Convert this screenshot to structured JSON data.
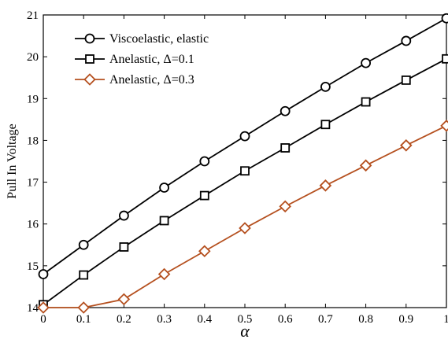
{
  "chart_data": {
    "type": "line",
    "xlabel": "α",
    "ylabel": "Pull In Voltage",
    "xlim": [
      0,
      1
    ],
    "ylim": [
      14,
      21
    ],
    "x": [
      0,
      0.1,
      0.2,
      0.3,
      0.4,
      0.5,
      0.6,
      0.7,
      0.8,
      0.9,
      1
    ],
    "xticks": [
      "0",
      "0.1",
      "0.2",
      "0.3",
      "0.4",
      "0.5",
      "0.6",
      "0.7",
      "0.8",
      "0.9",
      "1"
    ],
    "yticks": [
      "14",
      "15",
      "16",
      "17",
      "18",
      "19",
      "20",
      "21"
    ],
    "grid": false,
    "legend_position": "top-left",
    "series": [
      {
        "name": "Viscoelastic, elastic",
        "values": [
          14.8,
          15.5,
          16.2,
          16.87,
          17.5,
          18.1,
          18.7,
          19.28,
          19.85,
          20.38,
          20.92
        ],
        "color": "#000000",
        "marker": "circle"
      },
      {
        "name": "Anelastic, Δ=0.1",
        "values": [
          14.07,
          14.78,
          15.45,
          16.08,
          16.68,
          17.27,
          17.82,
          18.38,
          18.92,
          19.44,
          19.95
        ],
        "color": "#000000",
        "marker": "square"
      },
      {
        "name": "Anelastic, Δ=0.3",
        "values": [
          14.0,
          14.0,
          14.2,
          14.8,
          15.35,
          15.9,
          16.42,
          16.92,
          17.4,
          17.88,
          18.35
        ],
        "color": "#b5501f",
        "marker": "diamond"
      }
    ]
  }
}
